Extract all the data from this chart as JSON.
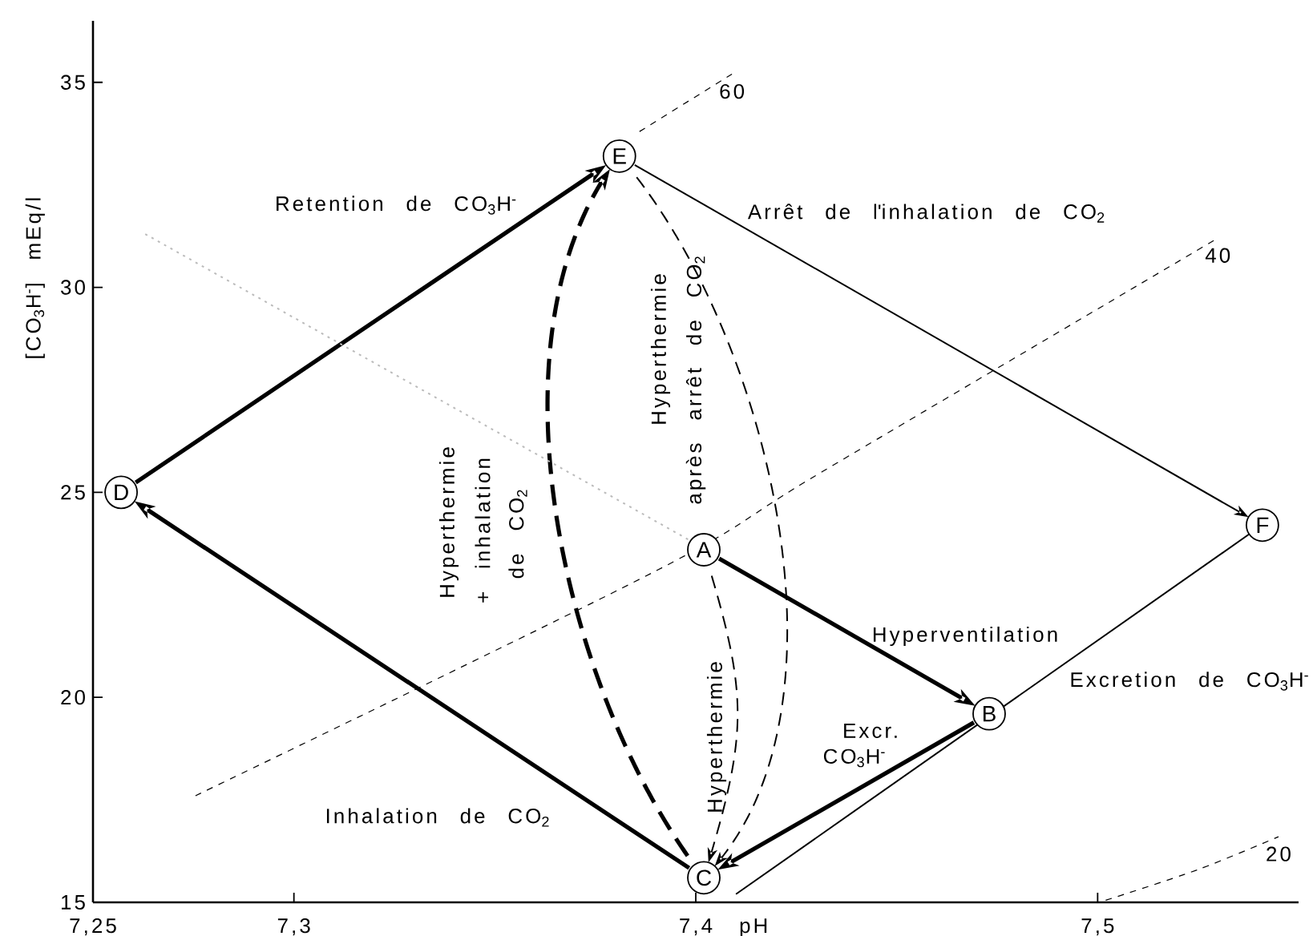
{
  "chart_data": {
    "type": "line",
    "xlabel": "pH",
    "ylabel": "[CO$_{3}$H$^{-}$] mEq/l",
    "xlim": [
      7.25,
      7.55
    ],
    "ylim": [
      15,
      36.5
    ],
    "xticks": [
      {
        "value": 7.25,
        "label": "7,25"
      },
      {
        "value": 7.3,
        "label": "7,3"
      },
      {
        "value": 7.4,
        "label": "7,4"
      },
      {
        "value": 7.5,
        "label": "7,5"
      }
    ],
    "yticks": [
      15,
      20,
      25,
      30,
      35
    ],
    "series": [
      {
        "name": "60",
        "color": "#000000",
        "line_style": "dashed",
        "x": [
          7.386,
          7.409
        ],
        "values": [
          33.8,
          35.2
        ]
      },
      {
        "name": "40",
        "color": "#000000",
        "line_style": "dashed",
        "x": [
          7.2755,
          7.3904,
          7.4314,
          7.5299
        ],
        "values": [
          17.6,
          23.1,
          25.5,
          31.2
        ]
      },
      {
        "name": "20",
        "color": "#000000",
        "line_style": "dashed",
        "x": [
          7.502,
          7.525,
          7.545
        ],
        "values": [
          15.05,
          15.8,
          16.6
        ]
      },
      {
        "color": "#bbbbbb",
        "line_style": "dotted",
        "x": [
          7.263,
          7.399
        ],
        "values": [
          31.3,
          23.8
        ]
      },
      {
        "color": "#000000",
        "line_style": "solid",
        "x": [
          7.538,
          7.41
        ],
        "values": [
          24.0,
          15.2
        ]
      },
      {
        "type": "scatter",
        "color": "#000000",
        "marker": "circle",
        "x": [
          7.402,
          7.473,
          7.402,
          7.257,
          7.381,
          7.541
        ],
        "values": [
          23.6,
          19.6,
          15.6,
          25.0,
          33.2,
          24.2
        ]
      }
    ],
    "annotations": [
      "Retention de CO$_{3}$H$^{-}$",
      "Arrêt de l'inhalation de CO$_{2}$",
      "Hyperthermie",
      "après arrêt de CO$_{2}$",
      "Hyperthermie",
      "+ inhalation",
      "de CO$_{2}$",
      "Hyperventilation",
      "Excretion de CO$_{3}$H$^{-}$",
      "Excr.",
      "CO$_{3}$H$^{-}$",
      "Hyperthermie",
      "Inhalation de CO$_{2}$",
      {
        "text": "A",
        "x": 7.402,
        "y": 23.6
      },
      {
        "text": "B",
        "x": 7.473,
        "y": 19.6
      },
      {
        "text": "C",
        "x": 7.402,
        "y": 15.6
      },
      {
        "text": "D",
        "x": 7.257,
        "y": 25.0
      },
      {
        "text": "E",
        "x": 7.381,
        "y": 33.2
      },
      {
        "text": "F",
        "x": 7.541,
        "y": 24.2
      }
    ]
  }
}
